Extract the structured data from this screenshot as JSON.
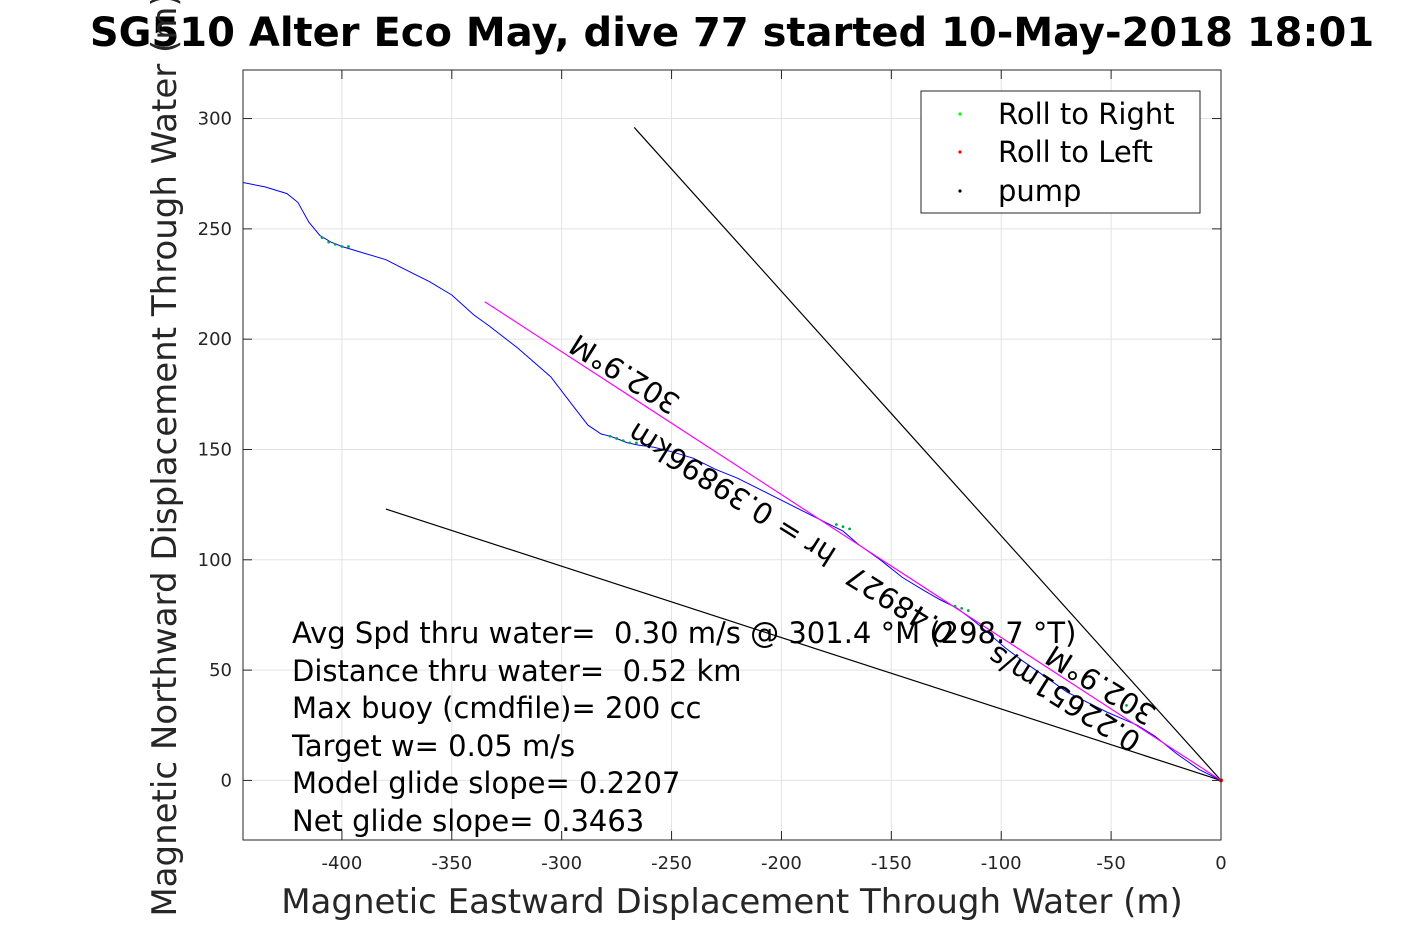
{
  "chart_data": {
    "type": "line",
    "title": "SG510 Alter Eco May, dive 77 started 10-May-2018 18:01",
    "xlabel": "Magnetic Eastward Displacement Through Water (m)",
    "ylabel": "Magnetic Northward Displacement Through Water (m)",
    "xlim": [
      -445,
      0
    ],
    "ylim": [
      -27,
      322
    ],
    "xticks": [
      "-400",
      "-350",
      "-300",
      "-250",
      "-200",
      "-150",
      "-100",
      "-50",
      "0"
    ],
    "yticks": [
      "0",
      "50",
      "100",
      "150",
      "200",
      "250",
      "300"
    ],
    "grid": true,
    "legend_position": "top-right",
    "legend": [
      {
        "label": "Roll to Right",
        "color": "#00ff00"
      },
      {
        "label": "Roll to Left",
        "color": "#ff0000"
      },
      {
        "label": "pump",
        "color": "#000000"
      }
    ],
    "track": {
      "name": "track",
      "color": "#0000ff",
      "x": [
        -445,
        -435,
        -425,
        -420,
        -415,
        -410,
        -405,
        -400,
        -390,
        -380,
        -370,
        -360,
        -350,
        -340,
        -333,
        -320,
        -305,
        -295,
        -288,
        -282,
        -278,
        -275,
        -270,
        -265,
        -258,
        -250,
        -240,
        -230,
        -220,
        -210,
        -200,
        -190,
        -180,
        -172,
        -165,
        -155,
        -145,
        -135,
        -128,
        -120,
        -112,
        -105,
        -98,
        -90,
        -80,
        -70,
        -60,
        -52,
        -45,
        -38,
        -30,
        -20,
        -10,
        0
      ],
      "y": [
        271,
        269,
        266,
        262,
        253,
        247,
        244,
        242,
        239,
        236,
        231,
        226,
        220,
        211,
        206,
        196,
        183,
        170,
        161,
        157,
        156,
        155,
        153,
        152,
        151,
        149,
        146,
        141,
        137,
        132,
        127,
        122,
        117,
        113,
        107,
        100,
        92,
        86,
        82,
        78,
        72,
        66,
        60,
        54,
        47,
        40,
        35,
        31,
        28,
        25,
        20,
        12,
        5,
        0
      ]
    },
    "roll_right_points": {
      "x": [
        -409,
        -406,
        -403,
        -400,
        -397,
        -278,
        -275,
        -272,
        -269,
        -266,
        -175,
        -172,
        -169,
        -121,
        -118,
        -115,
        -43,
        -40
      ],
      "y": [
        246,
        244,
        243,
        242,
        242,
        156,
        155,
        154,
        153,
        153,
        116,
        115,
        114,
        79,
        78,
        77,
        34,
        33
      ]
    },
    "pump_point": {
      "x": 0,
      "y": 0
    },
    "avg_heading_line": {
      "color": "#ff00ff",
      "x": [
        -335,
        0
      ],
      "y": [
        217,
        0
      ]
    },
    "guide_line_upper": {
      "color": "#000000",
      "x": [
        -267,
        0
      ],
      "y": [
        296,
        0
      ]
    },
    "guide_line_lower": {
      "color": "#000000",
      "x": [
        -380,
        0
      ],
      "y": [
        123,
        0
      ]
    },
    "rotated_labels": [
      "302.9°M",
      "0.39896km",
      "hr =",
      "0.48927",
      "0.22651m/s",
      "302.9°M"
    ],
    "annotations": [
      "Avg Spd thru water=  0.30 m/s @ 301.4 °M (298.7 °T)",
      "Distance thru water=  0.52 km",
      "Max buoy (cmdfile)= 200 cc",
      "Target w= 0.05 m/s",
      "Model glide slope= 0.2207",
      "Net glide slope= 0.3463"
    ]
  }
}
